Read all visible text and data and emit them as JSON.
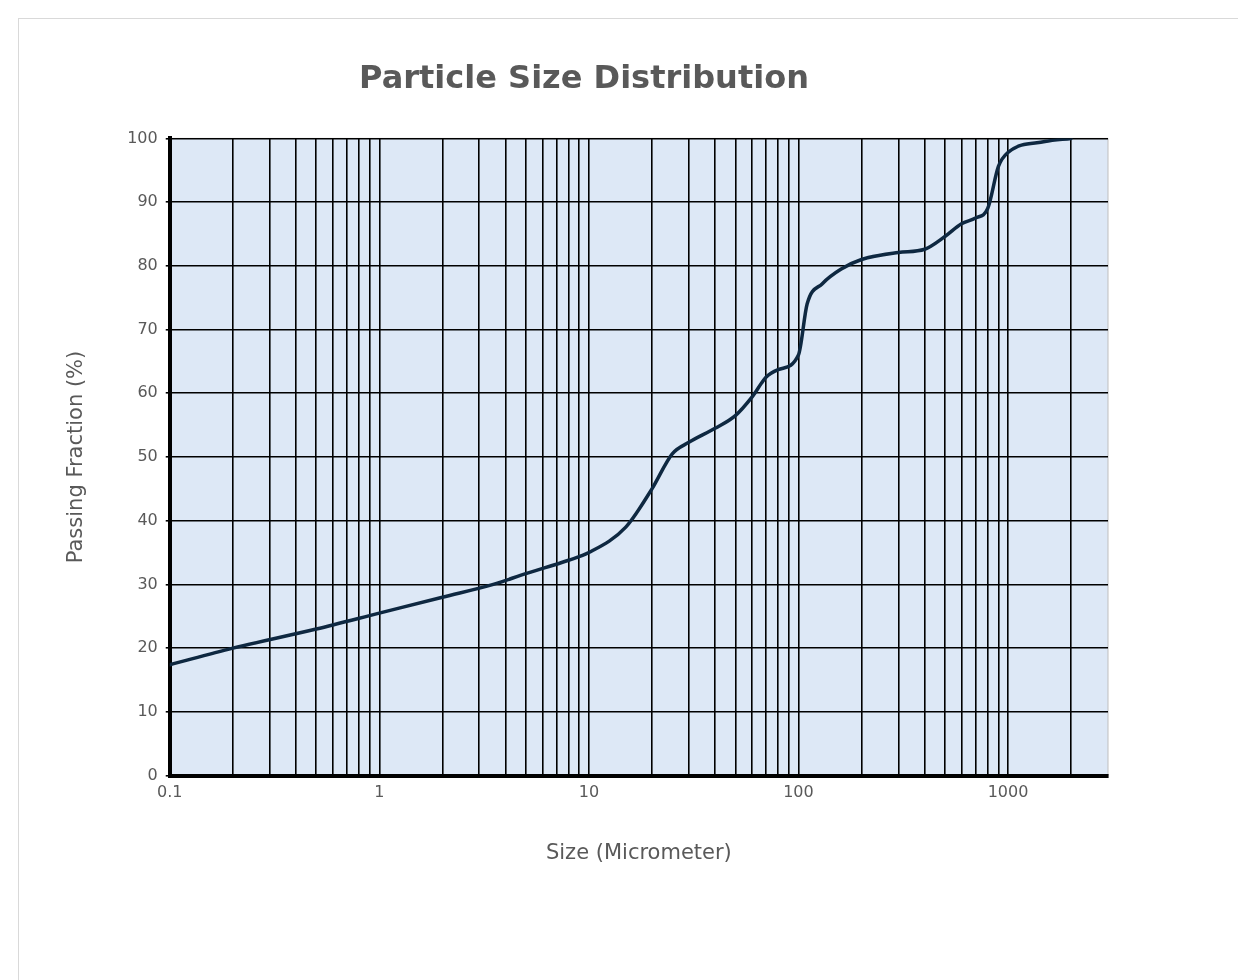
{
  "chart_data": {
    "type": "line",
    "title": "Particle Size Distribution",
    "xlabel": "Size (Micrometer)",
    "ylabel": "Passing Fraction (%)",
    "x": [
      0.1,
      0.2,
      0.5,
      1,
      2,
      3.5,
      5,
      8,
      10,
      15,
      20,
      25,
      30,
      40,
      50,
      60,
      70,
      80,
      100,
      110,
      130,
      160,
      200,
      300,
      400,
      500,
      600,
      700,
      800,
      900,
      1000,
      1500,
      2000
    ],
    "series": [
      {
        "color": "#0e2841",
        "values": [
          17.4,
          20,
          23,
          25.5,
          28,
          30,
          31.7,
          33.8,
          35,
          39,
          45,
          50.5,
          52.3,
          54.5,
          56.5,
          59.4,
          62.5,
          63.7,
          66,
          74,
          77.2,
          79.5,
          81,
          82.1,
          82.6,
          84.6,
          86.6,
          87.5,
          89,
          95.6,
          97.8,
          99.5,
          100
        ]
      }
    ],
    "log": "x",
    "xlim": [
      0.1,
      3000
    ],
    "xticks": [
      {
        "value": 0.1,
        "label": "0.1"
      },
      {
        "value": 0.2,
        "label": null
      },
      {
        "value": 0.3,
        "label": null
      },
      {
        "value": 0.4,
        "label": null
      },
      {
        "value": 0.5,
        "label": null
      },
      {
        "value": 0.6,
        "label": null
      },
      {
        "value": 0.7,
        "label": null
      },
      {
        "value": 0.8,
        "label": null
      },
      {
        "value": 0.9,
        "label": null
      },
      {
        "value": 1,
        "label": "1"
      },
      {
        "value": 2,
        "label": null
      },
      {
        "value": 3,
        "label": null
      },
      {
        "value": 4,
        "label": null
      },
      {
        "value": 5,
        "label": null
      },
      {
        "value": 6,
        "label": null
      },
      {
        "value": 7,
        "label": null
      },
      {
        "value": 8,
        "label": null
      },
      {
        "value": 9,
        "label": null
      },
      {
        "value": 10,
        "label": "10"
      },
      {
        "value": 20,
        "label": null
      },
      {
        "value": 30,
        "label": null
      },
      {
        "value": 40,
        "label": null
      },
      {
        "value": 50,
        "label": null
      },
      {
        "value": 60,
        "label": null
      },
      {
        "value": 70,
        "label": null
      },
      {
        "value": 80,
        "label": null
      },
      {
        "value": 90,
        "label": null
      },
      {
        "value": 100,
        "label": "100"
      },
      {
        "value": 200,
        "label": null
      },
      {
        "value": 300,
        "label": null
      },
      {
        "value": 400,
        "label": null
      },
      {
        "value": 500,
        "label": null
      },
      {
        "value": 600,
        "label": null
      },
      {
        "value": 700,
        "label": null
      },
      {
        "value": 800,
        "label": null
      },
      {
        "value": 900,
        "label": null
      },
      {
        "value": 1000,
        "label": "1000"
      },
      {
        "value": 2000,
        "label": null
      }
    ],
    "ylim": [
      0,
      100
    ],
    "yticks": [
      0,
      10,
      20,
      30,
      40,
      50,
      60,
      70,
      80,
      90,
      100
    ],
    "grid": true,
    "legend": false,
    "marker": "none",
    "line_style": "solid"
  }
}
